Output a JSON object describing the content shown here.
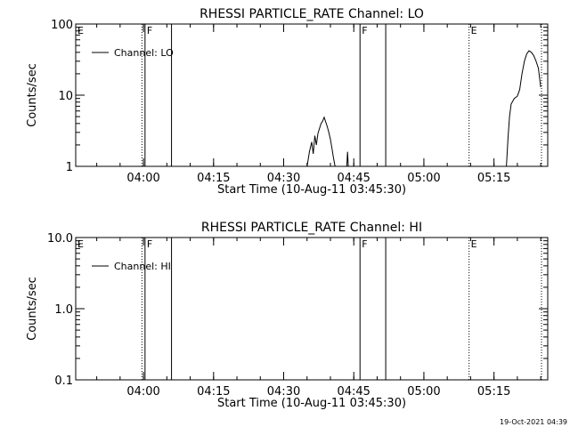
{
  "footer": {
    "timestamp": "19-Oct-2021 04:39"
  },
  "chart_data": [
    {
      "type": "line",
      "title": "RHESSI PARTICLE_RATE Channel: LO",
      "xlabel": "Start Time (10-Aug-11 03:45:30)",
      "ylabel": "Counts/sec",
      "yscale": "log",
      "ylim": [
        1,
        100
      ],
      "xlim": [
        "03:45:30",
        "05:26:30"
      ],
      "x_ticks": [
        "04:00",
        "04:15",
        "04:30",
        "04:45",
        "05:00",
        "05:15"
      ],
      "y_ticks": [
        "1",
        "10",
        "100"
      ],
      "legend": {
        "label": "Channel: LO",
        "placement": "top-left"
      },
      "markers": [
        {
          "label": "E",
          "time": "03:45:30",
          "style": "dotted"
        },
        {
          "label": "",
          "time": "03:59:40",
          "style": "dotted"
        },
        {
          "label": "F",
          "time": "04:00:20",
          "style": "solid"
        },
        {
          "label": "",
          "time": "04:06:00",
          "style": "solid"
        },
        {
          "label": "F",
          "time": "04:46:20",
          "style": "solid"
        },
        {
          "label": "",
          "time": "04:51:50",
          "style": "solid"
        },
        {
          "label": "E",
          "time": "05:09:40",
          "style": "dotted"
        },
        {
          "label": "",
          "time": "05:25:10",
          "style": "dotted"
        }
      ],
      "series": [
        {
          "segments": [
            [
              [
                "04:35:00",
                1.0
              ],
              [
                "04:35:30",
                1.6
              ],
              [
                "04:36:00",
                2.2
              ],
              [
                "04:36:20",
                1.5
              ],
              [
                "04:36:40",
                2.7
              ],
              [
                "04:37:00",
                2.0
              ],
              [
                "04:37:20",
                2.9
              ],
              [
                "04:37:40",
                3.4
              ],
              [
                "04:38:00",
                4.0
              ],
              [
                "04:38:20",
                4.3
              ],
              [
                "04:38:40",
                4.9
              ],
              [
                "04:39:00",
                4.2
              ],
              [
                "04:39:20",
                3.6
              ],
              [
                "04:39:40",
                3.0
              ],
              [
                "04:40:00",
                2.4
              ],
              [
                "04:40:20",
                1.8
              ],
              [
                "04:40:40",
                1.3
              ],
              [
                "04:41:00",
                1.0
              ]
            ],
            [
              [
                "04:43:30",
                1.0
              ],
              [
                "04:43:40",
                1.6
              ],
              [
                "04:43:50",
                1.0
              ]
            ],
            [
              [
                "05:17:40",
                1.0
              ],
              [
                "05:18:00",
                2.5
              ],
              [
                "05:18:20",
                5.0
              ],
              [
                "05:18:40",
                7.5
              ],
              [
                "05:19:20",
                9.0
              ],
              [
                "05:20:00",
                9.7
              ],
              [
                "05:20:30",
                12.0
              ],
              [
                "05:21:00",
                20.0
              ],
              [
                "05:21:30",
                30.0
              ],
              [
                "05:22:00",
                38.0
              ],
              [
                "05:22:30",
                42.0
              ],
              [
                "05:23:00",
                40.0
              ],
              [
                "05:23:30",
                36.0
              ],
              [
                "05:24:00",
                30.0
              ],
              [
                "05:24:30",
                24.0
              ],
              [
                "05:25:00",
                13.0
              ]
            ]
          ]
        }
      ]
    },
    {
      "type": "line",
      "title": "RHESSI PARTICLE_RATE Channel: HI",
      "xlabel": "Start Time (10-Aug-11 03:45:30)",
      "ylabel": "Counts/sec",
      "yscale": "log",
      "ylim": [
        0.1,
        10
      ],
      "xlim": [
        "03:45:30",
        "05:26:30"
      ],
      "x_ticks": [
        "04:00",
        "04:15",
        "04:30",
        "04:45",
        "05:00",
        "05:15"
      ],
      "y_ticks": [
        "0.1",
        "1.0",
        "10.0"
      ],
      "legend": {
        "label": "Channel: HI",
        "placement": "top-left"
      },
      "markers": [
        {
          "label": "E",
          "time": "03:45:30",
          "style": "dotted"
        },
        {
          "label": "",
          "time": "03:59:40",
          "style": "dotted"
        },
        {
          "label": "F",
          "time": "04:00:20",
          "style": "solid"
        },
        {
          "label": "",
          "time": "04:06:00",
          "style": "solid"
        },
        {
          "label": "F",
          "time": "04:46:20",
          "style": "solid"
        },
        {
          "label": "",
          "time": "04:51:50",
          "style": "solid"
        },
        {
          "label": "E",
          "time": "05:09:40",
          "style": "dotted"
        },
        {
          "label": "",
          "time": "05:25:10",
          "style": "dotted"
        }
      ],
      "series": [
        {
          "segments": []
        }
      ]
    }
  ]
}
